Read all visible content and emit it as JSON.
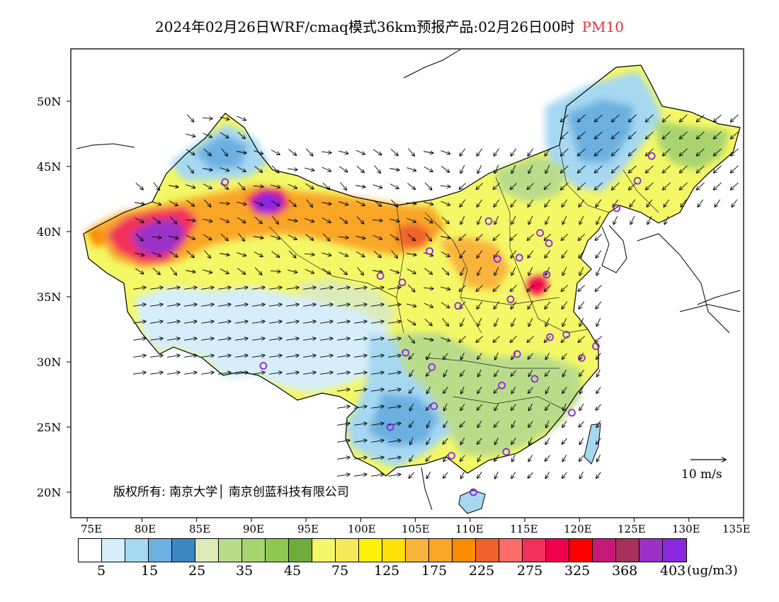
{
  "title": {
    "main": "2024年02月26日WRF/cmaq模式36km预报产品:02月26日00时",
    "variable": "PM10"
  },
  "axes": {
    "lat_labels": [
      "50N",
      "45N",
      "40N",
      "35N",
      "30N",
      "25N",
      "20N"
    ],
    "lon_labels": [
      "75E",
      "80E",
      "85E",
      "90E",
      "95E",
      "100E",
      "105E",
      "110E",
      "115E",
      "120E",
      "125E",
      "130E",
      "135E"
    ]
  },
  "copyright": "版权所有: 南京大学│ 南京创蓝科技有限公司",
  "wind_reference": "10 m/s",
  "legend": {
    "colors": [
      "#ffffff",
      "#d6eefa",
      "#a6d8f2",
      "#6cb0e0",
      "#3d86c4",
      "#dcebb8",
      "#b9dc8a",
      "#a8d470",
      "#8fc850",
      "#6ead3c",
      "#f4f866",
      "#f6e85a",
      "#fff200",
      "#fde108",
      "#f9b43c",
      "#f9a628",
      "#fa8c00",
      "#f0622c",
      "#fc6a6a",
      "#f2305a",
      "#f0004c",
      "#ff0000",
      "#c8187a",
      "#a8305a",
      "#9a30c8",
      "#8a28e0"
    ],
    "labels": [
      "5",
      "15",
      "25",
      "35",
      "45",
      "75",
      "125",
      "175",
      "225",
      "275",
      "325",
      "368",
      "403"
    ],
    "unit": "(ug/m3)"
  },
  "stations": [
    {
      "lon": 87.6,
      "lat": 43.8
    },
    {
      "lon": 91.1,
      "lat": 29.7
    },
    {
      "lon": 101.8,
      "lat": 36.6
    },
    {
      "lon": 103.8,
      "lat": 36.1
    },
    {
      "lon": 104.1,
      "lat": 30.7
    },
    {
      "lon": 106.3,
      "lat": 38.5
    },
    {
      "lon": 106.5,
      "lat": 29.6
    },
    {
      "lon": 106.7,
      "lat": 26.6
    },
    {
      "lon": 102.7,
      "lat": 25.0
    },
    {
      "lon": 108.3,
      "lat": 22.8
    },
    {
      "lon": 110.3,
      "lat": 20.0
    },
    {
      "lon": 108.9,
      "lat": 34.3
    },
    {
      "lon": 111.7,
      "lat": 40.8
    },
    {
      "lon": 112.5,
      "lat": 37.9
    },
    {
      "lon": 114.5,
      "lat": 38.0
    },
    {
      "lon": 116.4,
      "lat": 39.9
    },
    {
      "lon": 117.2,
      "lat": 39.1
    },
    {
      "lon": 117.0,
      "lat": 36.7
    },
    {
      "lon": 113.7,
      "lat": 34.8
    },
    {
      "lon": 117.3,
      "lat": 31.9
    },
    {
      "lon": 118.8,
      "lat": 32.1
    },
    {
      "lon": 120.2,
      "lat": 30.3
    },
    {
      "lon": 121.5,
      "lat": 31.2
    },
    {
      "lon": 114.3,
      "lat": 30.6
    },
    {
      "lon": 112.9,
      "lat": 28.2
    },
    {
      "lon": 115.9,
      "lat": 28.7
    },
    {
      "lon": 119.3,
      "lat": 26.1
    },
    {
      "lon": 113.3,
      "lat": 23.1
    },
    {
      "lon": 123.4,
      "lat": 41.8
    },
    {
      "lon": 125.3,
      "lat": 43.9
    },
    {
      "lon": 126.6,
      "lat": 45.8
    }
  ]
}
